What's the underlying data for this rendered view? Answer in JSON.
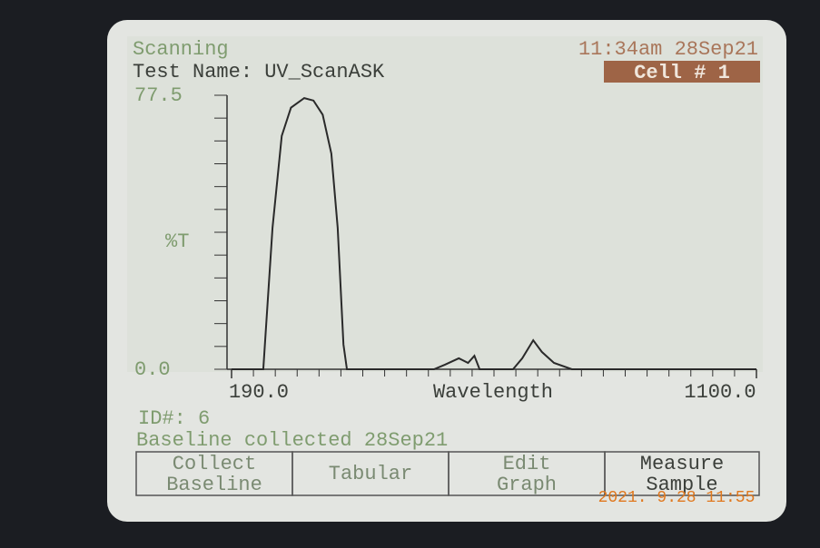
{
  "screen": {
    "status": "Scanning",
    "clock": "11:34am 28Sep21",
    "test_name": "Test Name: UV_ScanASK",
    "cell": "Cell # 1",
    "id": "ID#: 6",
    "baseline_note": "Baseline collected 28Sep21",
    "buttons": [
      "Collect Baseline",
      "Tabular",
      "Edit Graph",
      "Measure Sample"
    ],
    "photo_timestamp": "2021. 9.28 11:55"
  },
  "chart_data": {
    "type": "line",
    "x_label": "Wavelength",
    "y_label": "%T",
    "x": [
      190,
      245,
      261,
      277,
      293,
      316,
      332,
      348,
      363,
      374,
      384,
      390,
      541,
      560,
      584,
      600,
      611,
      620,
      678,
      694,
      713,
      728,
      749,
      780,
      1100
    ],
    "series": [
      {
        "name": "%T",
        "color": "#2a2a2a",
        "values": [
          0,
          0,
          40,
          66,
          74,
          76.7,
          76,
          72,
          61,
          40,
          7,
          0,
          0,
          1.3,
          3.1,
          1.8,
          3.8,
          0,
          0,
          3.1,
          8.2,
          4.9,
          1.8,
          0,
          0
        ]
      }
    ],
    "xlim": [
      190,
      1100
    ],
    "ylim": [
      0,
      77.5
    ],
    "xticks": [
      {
        "value": 190,
        "label": "190.0"
      },
      {
        "value": 1100,
        "label": "1100.0"
      }
    ],
    "yticks": [
      {
        "value": 0,
        "label": "0.0"
      },
      {
        "value": 77.5,
        "label": "77.5"
      }
    ]
  }
}
